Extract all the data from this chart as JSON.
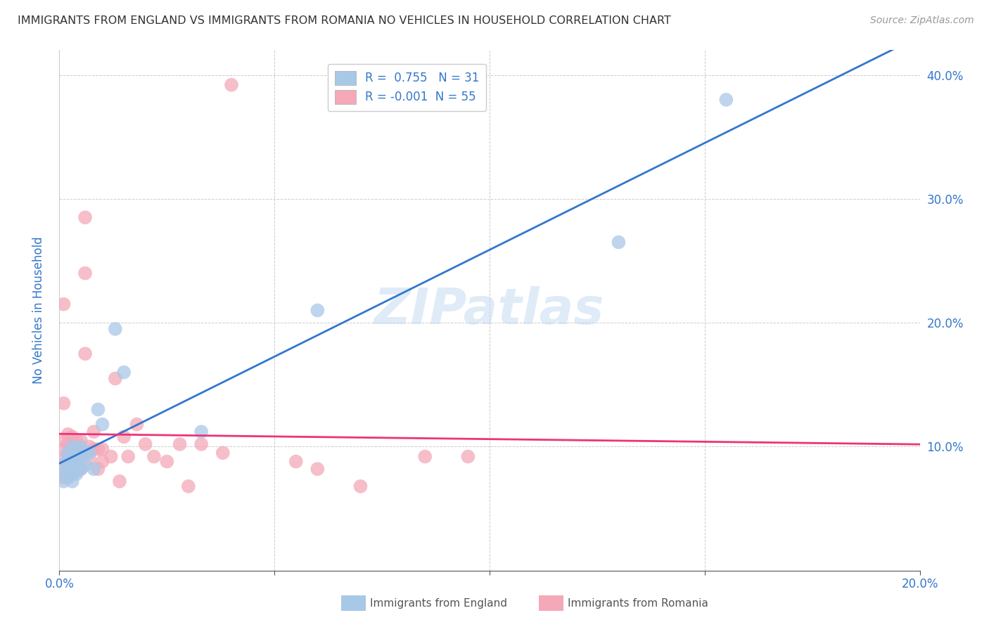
{
  "title": "IMMIGRANTS FROM ENGLAND VS IMMIGRANTS FROM ROMANIA NO VEHICLES IN HOUSEHOLD CORRELATION CHART",
  "source": "Source: ZipAtlas.com",
  "ylabel": "No Vehicles in Household",
  "x_min": 0.0,
  "x_max": 0.2,
  "y_min": 0.0,
  "y_max": 0.42,
  "x_ticks": [
    0.0,
    0.05,
    0.1,
    0.15,
    0.2
  ],
  "x_tick_labels": [
    "0.0%",
    "",
    "",
    "",
    "20.0%"
  ],
  "y_ticks": [
    0.0,
    0.1,
    0.2,
    0.3,
    0.4
  ],
  "y_tick_labels": [
    "",
    "10.0%",
    "20.0%",
    "30.0%",
    "40.0%"
  ],
  "legend_label_england": "Immigrants from England",
  "legend_label_romania": "Immigrants from Romania",
  "R_england": "0.755",
  "N_england": "31",
  "R_romania": "-0.001",
  "N_romania": "55",
  "color_england": "#a8c8e8",
  "color_romania": "#f4a8b8",
  "line_color_england": "#3377cc",
  "line_color_romania": "#ee3377",
  "watermark": "ZIPatlas",
  "england_x": [
    0.001,
    0.001,
    0.001,
    0.002,
    0.002,
    0.002,
    0.002,
    0.003,
    0.003,
    0.003,
    0.003,
    0.003,
    0.004,
    0.004,
    0.004,
    0.004,
    0.005,
    0.005,
    0.005,
    0.006,
    0.006,
    0.007,
    0.008,
    0.009,
    0.01,
    0.013,
    0.015,
    0.033,
    0.06,
    0.13,
    0.155
  ],
  "england_y": [
    0.085,
    0.078,
    0.072,
    0.095,
    0.09,
    0.082,
    0.075,
    0.1,
    0.092,
    0.085,
    0.078,
    0.072,
    0.098,
    0.092,
    0.085,
    0.078,
    0.1,
    0.092,
    0.082,
    0.095,
    0.085,
    0.095,
    0.082,
    0.13,
    0.118,
    0.195,
    0.16,
    0.112,
    0.21,
    0.265,
    0.38
  ],
  "romania_x": [
    0.001,
    0.001,
    0.001,
    0.001,
    0.001,
    0.001,
    0.001,
    0.002,
    0.002,
    0.002,
    0.002,
    0.002,
    0.002,
    0.003,
    0.003,
    0.003,
    0.003,
    0.003,
    0.004,
    0.004,
    0.004,
    0.004,
    0.005,
    0.005,
    0.005,
    0.006,
    0.006,
    0.006,
    0.007,
    0.007,
    0.008,
    0.008,
    0.009,
    0.009,
    0.01,
    0.01,
    0.012,
    0.013,
    0.014,
    0.015,
    0.016,
    0.018,
    0.02,
    0.022,
    0.025,
    0.028,
    0.03,
    0.033,
    0.038,
    0.04,
    0.055,
    0.06,
    0.07,
    0.085,
    0.095
  ],
  "romania_y": [
    0.215,
    0.135,
    0.105,
    0.098,
    0.09,
    0.082,
    0.075,
    0.11,
    0.102,
    0.095,
    0.088,
    0.082,
    0.075,
    0.108,
    0.1,
    0.092,
    0.085,
    0.078,
    0.105,
    0.098,
    0.088,
    0.08,
    0.105,
    0.095,
    0.082,
    0.285,
    0.24,
    0.175,
    0.1,
    0.09,
    0.112,
    0.098,
    0.098,
    0.082,
    0.098,
    0.088,
    0.092,
    0.155,
    0.072,
    0.108,
    0.092,
    0.118,
    0.102,
    0.092,
    0.088,
    0.102,
    0.068,
    0.102,
    0.095,
    0.392,
    0.088,
    0.082,
    0.068,
    0.092,
    0.092
  ],
  "background_color": "#ffffff",
  "grid_color": "#cccccc",
  "title_color": "#333333",
  "axis_tick_color": "#3377cc",
  "bottom_label_color_eng": "#7ab0d8",
  "bottom_label_color_rom": "#f080a0"
}
